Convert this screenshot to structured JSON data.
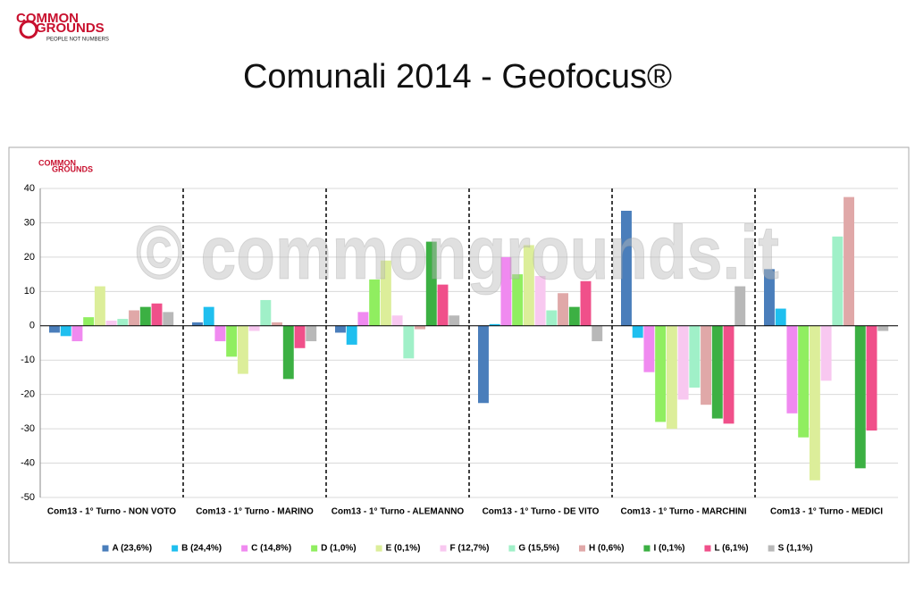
{
  "logo": {
    "line1": "COMMON",
    "line2": "GROUNDS",
    "tagline": "PEOPLE NOT NUMBERS"
  },
  "slide_title": "Comunali 2014 - Geofocus®",
  "watermark": "© commongrounds.it",
  "chart_data": {
    "type": "bar",
    "categories": [
      "Com13 - 1° Turno - NON VOTO",
      "Com13 - 1° Turno - MARINO",
      "Com13 - 1° Turno - ALEMANNO",
      "Com13 - 1° Turno - DE VITO",
      "Com13 - 1° Turno - MARCHINI",
      "Com13 - 1° Turno - MEDICI"
    ],
    "series": [
      {
        "name": "A (23,6%)",
        "color": "#4a7ebb",
        "values": [
          -2,
          1,
          -2,
          -22.5,
          33.5,
          16.5
        ]
      },
      {
        "name": "B (24,4%)",
        "color": "#1fbfef",
        "values": [
          -3,
          5.5,
          -5.5,
          0.5,
          -3.5,
          5
        ]
      },
      {
        "name": "C (14,8%)",
        "color": "#f08af0",
        "values": [
          -4.5,
          -4.5,
          4,
          20,
          -13.5,
          -25.5
        ]
      },
      {
        "name": "D (1,0%)",
        "color": "#90ee60",
        "values": [
          2.5,
          -9,
          13.5,
          15,
          -28,
          -32.5
        ]
      },
      {
        "name": "E (0,1%)",
        "color": "#dcee9a",
        "values": [
          11.5,
          -14,
          19,
          23.5,
          -30,
          -45
        ]
      },
      {
        "name": "F (12,7%)",
        "color": "#f8c8f0",
        "values": [
          1.5,
          -1.5,
          3,
          14.5,
          -21.5,
          -16
        ]
      },
      {
        "name": "G (15,5%)",
        "color": "#a0f0c8",
        "values": [
          2,
          7.5,
          -9.5,
          4.5,
          -18,
          26
        ]
      },
      {
        "name": "H (0,6%)",
        "color": "#e0a8a8",
        "values": [
          4.5,
          1,
          -1,
          9.5,
          -23,
          37.5
        ]
      },
      {
        "name": "I (0,1%)",
        "color": "#3cb043",
        "values": [
          5.5,
          -15.5,
          24.5,
          5.5,
          -27,
          -41.5
        ]
      },
      {
        "name": "L (6,1%)",
        "color": "#f0508a",
        "values": [
          6.5,
          -6.5,
          12,
          13,
          -28.5,
          -30.5
        ]
      },
      {
        "name": "S (1,1%)",
        "color": "#b8b8b8",
        "values": [
          4,
          -4.5,
          3,
          -4.5,
          11.5,
          -1.5
        ]
      }
    ],
    "ylim": [
      -50,
      40
    ],
    "yticks": [
      -50,
      -40,
      -30,
      -20,
      -10,
      0,
      10,
      20,
      30,
      40
    ],
    "grid": true,
    "legend": "bottom"
  }
}
